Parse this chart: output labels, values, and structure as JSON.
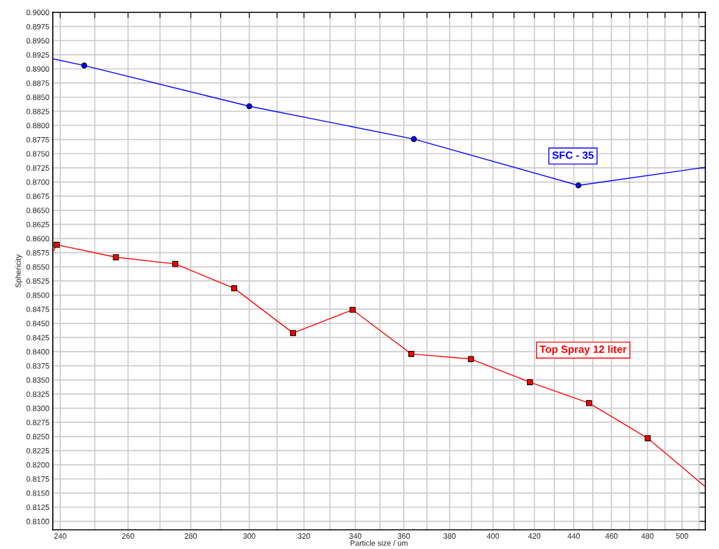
{
  "chart_data": {
    "type": "line",
    "xlabel": "Particle size / um",
    "ylabel": "Sphericity",
    "log": "x",
    "grid": true,
    "xlim": [
      237.9,
      513.9
    ],
    "ylim": [
      0.8085,
      0.9
    ],
    "xticks": [
      240,
      {
        "value": 250,
        "label": null
      },
      260,
      {
        "value": 270,
        "label": null
      },
      280,
      {
        "value": 290,
        "label": null
      },
      300,
      {
        "value": 310,
        "label": null
      },
      320,
      {
        "value": 330,
        "label": null
      },
      340,
      {
        "value": 350,
        "label": null
      },
      360,
      {
        "value": 370,
        "label": null
      },
      380,
      {
        "value": 390,
        "label": null
      },
      400,
      {
        "value": 410,
        "label": null
      },
      420,
      {
        "value": 430,
        "label": null
      },
      440,
      {
        "value": 450,
        "label": null
      },
      460,
      {
        "value": 470,
        "label": null
      },
      480,
      {
        "value": 490,
        "label": null
      },
      500,
      {
        "value": 510,
        "label": null
      }
    ],
    "yticks": [
      {
        "value": 0.81,
        "label": "0.8100"
      },
      {
        "value": 0.8125,
        "label": "0.8125"
      },
      {
        "value": 0.815,
        "label": "0.8150"
      },
      {
        "value": 0.8175,
        "label": "0.8175"
      },
      {
        "value": 0.82,
        "label": "0.8200"
      },
      {
        "value": 0.8225,
        "label": "0.8225"
      },
      {
        "value": 0.825,
        "label": "0.8250"
      },
      {
        "value": 0.8275,
        "label": "0.8275"
      },
      {
        "value": 0.83,
        "label": "0.8300"
      },
      {
        "value": 0.8325,
        "label": "0.8325"
      },
      {
        "value": 0.835,
        "label": "0.8350"
      },
      {
        "value": 0.8375,
        "label": "0.8375"
      },
      {
        "value": 0.84,
        "label": "0.8400"
      },
      {
        "value": 0.8425,
        "label": "0.8425"
      },
      {
        "value": 0.845,
        "label": "0.8450"
      },
      {
        "value": 0.8475,
        "label": "0.8475"
      },
      {
        "value": 0.85,
        "label": "0.8500"
      },
      {
        "value": 0.8525,
        "label": "0.8525"
      },
      {
        "value": 0.855,
        "label": "0.8550"
      },
      {
        "value": 0.8575,
        "label": "0.8575"
      },
      {
        "value": 0.86,
        "label": "0.8600"
      },
      {
        "value": 0.8625,
        "label": "0.8625"
      },
      {
        "value": 0.865,
        "label": "0.8650"
      },
      {
        "value": 0.8675,
        "label": "0.8675"
      },
      {
        "value": 0.87,
        "label": "0.8700"
      },
      {
        "value": 0.8725,
        "label": "0.8725"
      },
      {
        "value": 0.875,
        "label": "0.8750"
      },
      {
        "value": 0.8775,
        "label": "0.8775"
      },
      {
        "value": 0.88,
        "label": "0.8800"
      },
      {
        "value": 0.8825,
        "label": "0.8825"
      },
      {
        "value": 0.885,
        "label": "0.8850"
      },
      {
        "value": 0.8875,
        "label": "0.8875"
      },
      {
        "value": 0.89,
        "label": "0.8900"
      },
      {
        "value": 0.8925,
        "label": "0.8925"
      },
      {
        "value": 0.895,
        "label": "0.8950"
      },
      {
        "value": 0.8975,
        "label": "0.8975"
      },
      {
        "value": 0.9,
        "label": "0.9000"
      }
    ],
    "series": [
      {
        "name": "SFC - 35",
        "marker": "none",
        "color": "#0000ff",
        "x": [
          237.9,
          246.9,
          300.0,
          364.3,
          442.4,
          513.9
        ],
        "values": [
          0.8918,
          0.8906,
          0.8834,
          0.8776,
          0.8694,
          0.8726
        ]
      },
      {
        "name": "Top Spray 12 liter",
        "marker": "none",
        "color": "#ff0000",
        "x": [
          237.9,
          239.0,
          256.3,
          274.9,
          294.7,
          315.9,
          338.9,
          363.2,
          389.7,
          417.8,
          448.0,
          480.1,
          513.9
        ],
        "values": [
          0.8576,
          0.8589,
          0.8567,
          0.8555,
          0.8512,
          0.8433,
          0.8474,
          0.8396,
          0.8387,
          0.8346,
          0.8309,
          0.8247,
          0.8161
        ]
      },
      {
        "type": "scatter",
        "marker": "circle",
        "color": "#0000ff",
        "x": [
          246.9,
          300.0,
          364.3,
          442.4
        ],
        "values": [
          0.8906,
          0.8834,
          0.8776,
          0.8694
        ]
      },
      {
        "type": "scatter",
        "marker": "square",
        "color": "#ff0000",
        "x": [
          239.0,
          256.3,
          274.9,
          294.7,
          315.9,
          338.9,
          363.2,
          389.7,
          417.8,
          448.0,
          480.1
        ],
        "values": [
          0.8589,
          0.8567,
          0.8555,
          0.8512,
          0.8433,
          0.8474,
          0.8396,
          0.8387,
          0.8346,
          0.8309,
          0.8247
        ]
      }
    ]
  }
}
